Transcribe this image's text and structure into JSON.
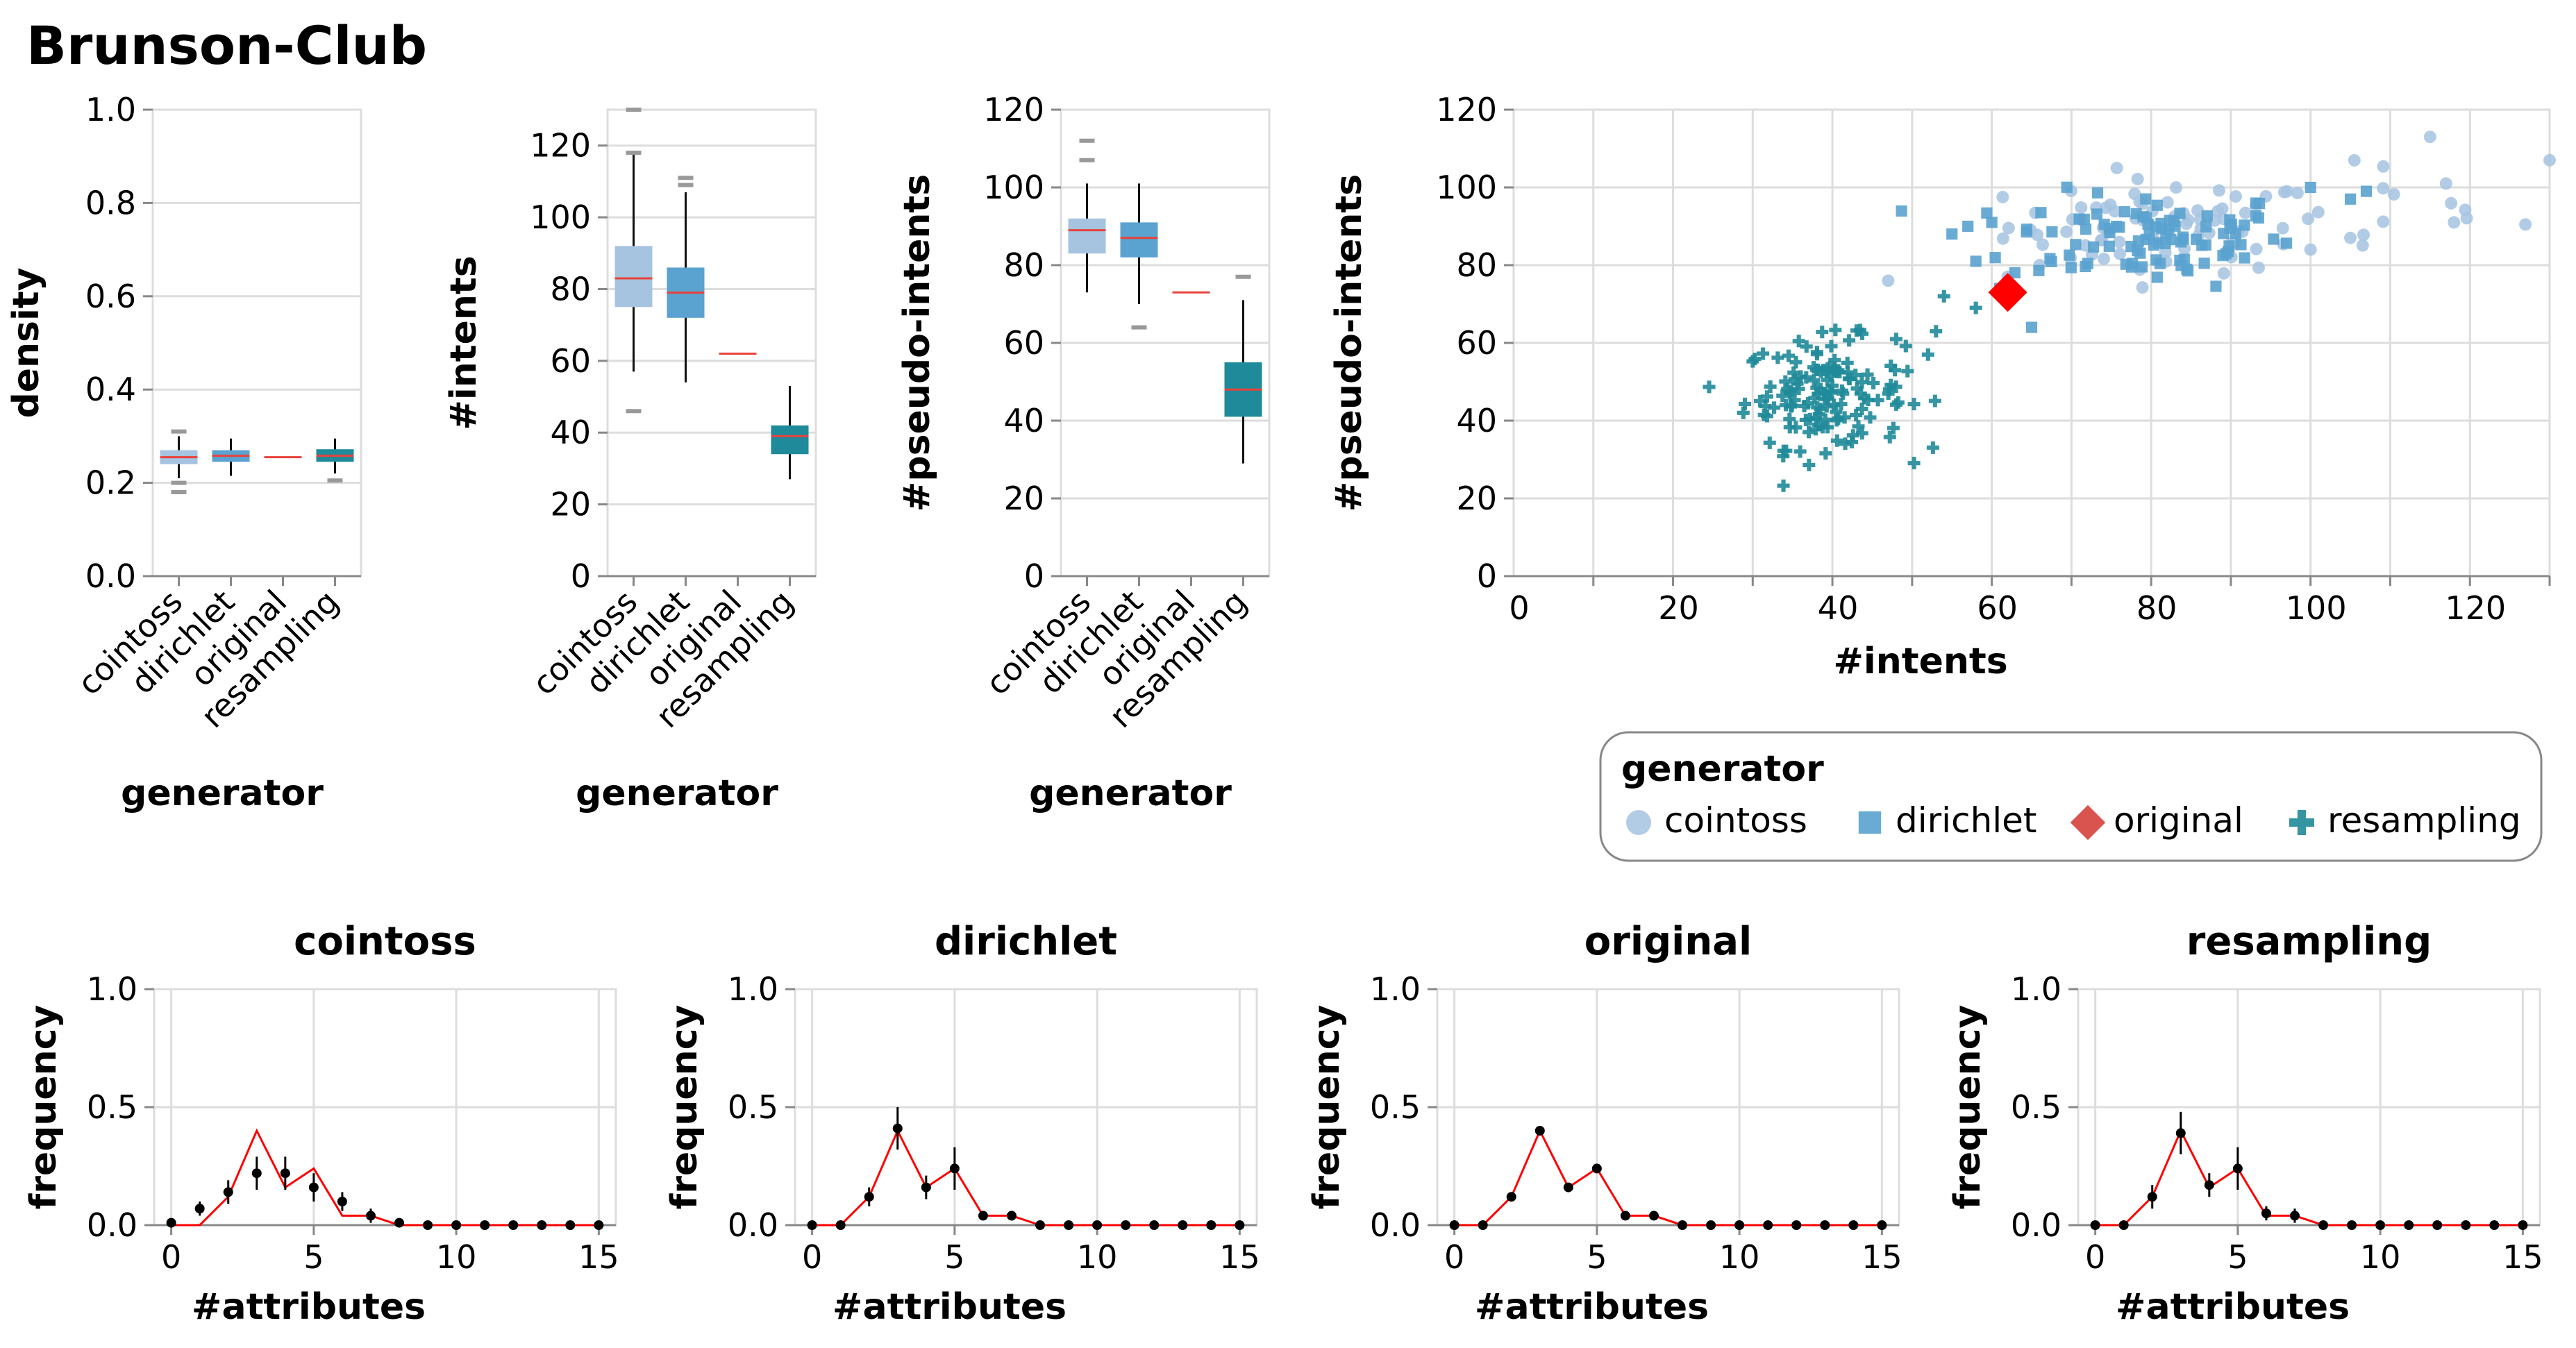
{
  "title": "Brunson-Club",
  "colors": {
    "cointoss": "#a6c3e0",
    "dirichlet": "#5aa2cf",
    "original": "#d9534f",
    "resampling": "#1f8a99",
    "median": "#e8423a",
    "scatter_original": "#ff0000",
    "outlier": "#999999",
    "line": "#ff0000",
    "dot": "#000000"
  },
  "legend": {
    "title": "generator",
    "items": [
      {
        "label": "cointoss",
        "shape": "circle"
      },
      {
        "label": "dirichlet",
        "shape": "square"
      },
      {
        "label": "original",
        "shape": "diamond"
      },
      {
        "label": "resampling",
        "shape": "cross"
      }
    ]
  },
  "chart_data": [
    {
      "id": "density_box",
      "type": "boxplot",
      "xlabel": "generator",
      "ylabel": "density",
      "categories": [
        "cointoss",
        "dirichlet",
        "original",
        "resampling"
      ],
      "ylim": [
        0,
        1.0
      ],
      "yticks": [
        0.0,
        0.2,
        0.4,
        0.6,
        0.8,
        1.0
      ],
      "ytick_labels": [
        "0.0",
        "0.2",
        "0.4",
        "0.6",
        "0.8",
        "1.0"
      ],
      "boxes": [
        {
          "min": 0.21,
          "q1": 0.24,
          "median": 0.255,
          "q3": 0.27,
          "max": 0.3,
          "outliers": [
            0.18,
            0.2,
            0.31
          ]
        },
        {
          "min": 0.215,
          "q1": 0.245,
          "median": 0.258,
          "q3": 0.27,
          "max": 0.295,
          "outliers": []
        },
        {
          "min": 0.255,
          "q1": 0.255,
          "median": 0.255,
          "q3": 0.255,
          "max": 0.255,
          "outliers": []
        },
        {
          "min": 0.22,
          "q1": 0.245,
          "median": 0.258,
          "q3": 0.272,
          "max": 0.295,
          "outliers": [
            0.205
          ]
        }
      ]
    },
    {
      "id": "intents_box",
      "type": "boxplot",
      "xlabel": "generator",
      "ylabel": "#intents",
      "categories": [
        "cointoss",
        "dirichlet",
        "original",
        "resampling"
      ],
      "ylim": [
        0,
        130
      ],
      "yticks": [
        0,
        20,
        40,
        60,
        80,
        100,
        120
      ],
      "ytick_labels": [
        "0",
        "20",
        "40",
        "60",
        "80",
        "100",
        "120"
      ],
      "boxes": [
        {
          "min": 57,
          "q1": 75,
          "median": 83,
          "q3": 92,
          "max": 118,
          "outliers": [
            46,
            118,
            130
          ]
        },
        {
          "min": 54,
          "q1": 72,
          "median": 79,
          "q3": 86,
          "max": 107,
          "outliers": [
            109,
            111
          ]
        },
        {
          "min": 62,
          "q1": 62,
          "median": 62,
          "q3": 62,
          "max": 62,
          "outliers": []
        },
        {
          "min": 27,
          "q1": 34,
          "median": 39,
          "q3": 42,
          "max": 53,
          "outliers": []
        }
      ]
    },
    {
      "id": "pseudo_box",
      "type": "boxplot",
      "xlabel": "generator",
      "ylabel": "#pseudo-intents",
      "categories": [
        "cointoss",
        "dirichlet",
        "original",
        "resampling"
      ],
      "ylim": [
        0,
        120
      ],
      "yticks": [
        0,
        20,
        40,
        60,
        80,
        100,
        120
      ],
      "ytick_labels": [
        "0",
        "20",
        "40",
        "60",
        "80",
        "100",
        "120"
      ],
      "boxes": [
        {
          "min": 73,
          "q1": 83,
          "median": 89,
          "q3": 92,
          "max": 101,
          "outliers": [
            107,
            112
          ]
        },
        {
          "min": 70,
          "q1": 82,
          "median": 87,
          "q3": 91,
          "max": 101,
          "outliers": [
            64
          ]
        },
        {
          "min": 73,
          "q1": 73,
          "median": 73,
          "q3": 73,
          "max": 73,
          "outliers": []
        },
        {
          "min": 29,
          "q1": 41,
          "median": 48,
          "q3": 55,
          "max": 71,
          "outliers": [
            77
          ]
        }
      ]
    },
    {
      "id": "scatter",
      "type": "scatter",
      "xlabel": "#intents",
      "ylabel": "#pseudo-intents",
      "xlim": [
        0,
        130
      ],
      "ylim": [
        0,
        120
      ],
      "xticks": [
        0,
        20,
        40,
        60,
        80,
        100,
        120
      ],
      "xtick_labels": [
        "0",
        "20",
        "40",
        "60",
        "80",
        "100",
        "120"
      ],
      "yticks": [
        0,
        20,
        40,
        60,
        80,
        100,
        120
      ],
      "ytick_labels": [
        "0",
        "20",
        "40",
        "60",
        "80",
        "100",
        "120"
      ],
      "series": [
        {
          "name": "cointoss",
          "shape": "circle",
          "clusters": [
            [
              82,
              90,
              10,
              6,
              75
            ],
            [
              110,
              95,
              8,
              8,
              12
            ]
          ],
          "extra": [
            [
              115,
              113
            ],
            [
              117,
              101
            ],
            [
              118,
              91
            ],
            [
              130,
              107
            ],
            [
              47,
              76
            ],
            [
              62,
              77
            ],
            [
              66,
              80
            ],
            [
              100,
              84
            ],
            [
              105,
              87
            ]
          ]
        },
        {
          "name": "dirichlet",
          "shape": "square",
          "clusters": [
            [
              80,
              87,
              9,
              6,
              95
            ]
          ],
          "extra": [
            [
              55,
              88
            ],
            [
              57,
              90
            ],
            [
              60,
              91
            ],
            [
              58,
              81
            ],
            [
              61,
              74
            ],
            [
              65,
              64
            ],
            [
              100,
              100
            ],
            [
              105,
              97
            ],
            [
              107,
              99
            ]
          ]
        },
        {
          "name": "resampling",
          "shape": "cross",
          "clusters": [
            [
              39,
              47,
              5,
              7,
              140
            ]
          ],
          "extra": [
            [
              48,
              61
            ],
            [
              52,
              57
            ],
            [
              54,
              72
            ],
            [
              58,
              69
            ],
            [
              53,
              63
            ]
          ]
        },
        {
          "name": "original",
          "shape": "diamond",
          "points": [
            [
              62,
              73
            ]
          ]
        }
      ]
    },
    {
      "id": "attr_cointoss",
      "type": "line",
      "title": "cointoss",
      "xlabel": "#attributes",
      "ylabel": "frequency",
      "xlim": [
        0,
        15
      ],
      "ylim": [
        0,
        1.0
      ],
      "xticks": [
        0,
        5,
        10,
        15
      ],
      "xtick_labels": [
        "0",
        "5",
        "10",
        "15"
      ],
      "yticks": [
        0.0,
        0.5,
        1.0
      ],
      "ytick_labels": [
        "0.0",
        "0.5",
        "1.0"
      ],
      "x": [
        0,
        1,
        2,
        3,
        4,
        5,
        6,
        7,
        8,
        9,
        10,
        11,
        12,
        13,
        14,
        15
      ],
      "line": [
        0,
        0,
        0.12,
        0.4,
        0.16,
        0.24,
        0.04,
        0.04,
        0,
        0,
        0,
        0,
        0,
        0,
        0,
        0
      ],
      "mean": [
        0.01,
        0.07,
        0.14,
        0.22,
        0.22,
        0.16,
        0.1,
        0.04,
        0.01,
        0,
        0,
        0,
        0,
        0,
        0,
        0
      ],
      "err": [
        0,
        0.03,
        0.05,
        0.07,
        0.07,
        0.06,
        0.04,
        0.03,
        0.01,
        0,
        0,
        0,
        0,
        0,
        0,
        0
      ]
    },
    {
      "id": "attr_dirichlet",
      "type": "line",
      "title": "dirichlet",
      "xlabel": "#attributes",
      "ylabel": "frequency",
      "xlim": [
        0,
        15
      ],
      "ylim": [
        0,
        1.0
      ],
      "xticks": [
        0,
        5,
        10,
        15
      ],
      "xtick_labels": [
        "0",
        "5",
        "10",
        "15"
      ],
      "yticks": [
        0.0,
        0.5,
        1.0
      ],
      "ytick_labels": [
        "0.0",
        "0.5",
        "1.0"
      ],
      "x": [
        0,
        1,
        2,
        3,
        4,
        5,
        6,
        7,
        8,
        9,
        10,
        11,
        12,
        13,
        14,
        15
      ],
      "line": [
        0,
        0,
        0.12,
        0.4,
        0.16,
        0.24,
        0.04,
        0.04,
        0,
        0,
        0,
        0,
        0,
        0,
        0,
        0
      ],
      "mean": [
        0,
        0,
        0.12,
        0.41,
        0.16,
        0.24,
        0.04,
        0.04,
        0,
        0,
        0,
        0,
        0,
        0,
        0,
        0
      ],
      "err": [
        0,
        0,
        0.04,
        0.09,
        0.05,
        0.09,
        0.02,
        0.02,
        0,
        0,
        0,
        0,
        0,
        0,
        0,
        0
      ]
    },
    {
      "id": "attr_original",
      "type": "line",
      "title": "original",
      "xlabel": "#attributes",
      "ylabel": "frequency",
      "xlim": [
        0,
        15
      ],
      "ylim": [
        0,
        1.0
      ],
      "xticks": [
        0,
        5,
        10,
        15
      ],
      "xtick_labels": [
        "0",
        "5",
        "10",
        "15"
      ],
      "yticks": [
        0.0,
        0.5,
        1.0
      ],
      "ytick_labels": [
        "0.0",
        "0.5",
        "1.0"
      ],
      "x": [
        0,
        1,
        2,
        3,
        4,
        5,
        6,
        7,
        8,
        9,
        10,
        11,
        12,
        13,
        14,
        15
      ],
      "line": [
        0,
        0,
        0.12,
        0.4,
        0.16,
        0.24,
        0.04,
        0.04,
        0,
        0,
        0,
        0,
        0,
        0,
        0,
        0
      ],
      "mean": [
        0,
        0,
        0.12,
        0.4,
        0.16,
        0.24,
        0.04,
        0.04,
        0,
        0,
        0,
        0,
        0,
        0,
        0,
        0
      ],
      "err": [
        0,
        0,
        0,
        0,
        0,
        0,
        0,
        0,
        0,
        0,
        0,
        0,
        0,
        0,
        0,
        0
      ]
    },
    {
      "id": "attr_resampling",
      "type": "line",
      "title": "resampling",
      "xlabel": "#attributes",
      "ylabel": "frequency",
      "xlim": [
        0,
        15
      ],
      "ylim": [
        0,
        1.0
      ],
      "xticks": [
        0,
        5,
        10,
        15
      ],
      "xtick_labels": [
        "0",
        "5",
        "10",
        "15"
      ],
      "yticks": [
        0.0,
        0.5,
        1.0
      ],
      "ytick_labels": [
        "0.0",
        "0.5",
        "1.0"
      ],
      "x": [
        0,
        1,
        2,
        3,
        4,
        5,
        6,
        7,
        8,
        9,
        10,
        11,
        12,
        13,
        14,
        15
      ],
      "line": [
        0,
        0,
        0.12,
        0.4,
        0.16,
        0.24,
        0.04,
        0.04,
        0,
        0,
        0,
        0,
        0,
        0,
        0,
        0
      ],
      "mean": [
        0,
        0,
        0.12,
        0.39,
        0.17,
        0.24,
        0.05,
        0.04,
        0,
        0,
        0,
        0,
        0,
        0,
        0,
        0
      ],
      "err": [
        0,
        0,
        0.05,
        0.09,
        0.05,
        0.09,
        0.03,
        0.03,
        0,
        0,
        0,
        0,
        0,
        0,
        0,
        0
      ]
    }
  ]
}
